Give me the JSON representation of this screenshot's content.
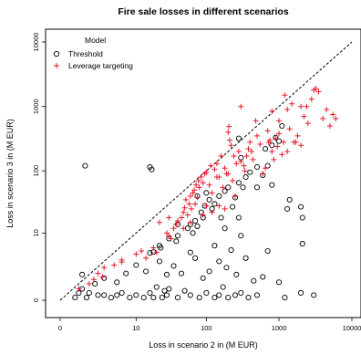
{
  "chart_data": {
    "type": "scatter",
    "title": "Fire sale losses in different scenarios",
    "xlabel": "Loss in scenario  2  in (M EUR)",
    "ylabel": "Loss in scenario  3  in (M EUR)",
    "x_scale": "log1p",
    "y_scale": "log1p",
    "xlim": [
      0,
      10000
    ],
    "ylim": [
      0,
      10000
    ],
    "x_ticks": [
      0,
      10,
      100,
      1000,
      10000
    ],
    "x_tick_labels": [
      "0",
      "10",
      "100",
      "1000",
      "10000"
    ],
    "y_ticks": [
      0,
      10,
      100,
      1000,
      10000
    ],
    "y_tick_labels": [
      "0",
      "10",
      "100",
      "1000",
      "10000"
    ],
    "reference_line": "identity (y = x), dashed",
    "legend": {
      "title": "Model",
      "position": "top-left",
      "entries": [
        "Threshold",
        "Leverage targeting"
      ]
    },
    "series": [
      {
        "name": "Threshold",
        "marker": "open-circle",
        "color": "#000000",
        "points": [
          [
            0.6,
            0.1
          ],
          [
            0.8,
            0.3
          ],
          [
            1,
            0.5
          ],
          [
            1.3,
            0.1
          ],
          [
            1.5,
            0.3
          ],
          [
            2,
            0.8
          ],
          [
            2.3,
            0.2
          ],
          [
            3,
            0.2
          ],
          [
            4,
            0.1
          ],
          [
            5,
            0.2
          ],
          [
            6,
            0.3
          ],
          [
            8,
            0.1
          ],
          [
            10,
            0.2
          ],
          [
            13,
            0.1
          ],
          [
            16,
            0.3
          ],
          [
            18,
            0.1
          ],
          [
            20,
            0.6
          ],
          [
            24,
            0.1
          ],
          [
            26,
            0.4
          ],
          [
            28,
            0.2
          ],
          [
            30,
            0.5
          ],
          [
            40,
            0.1
          ],
          [
            50,
            0.4
          ],
          [
            60,
            0.2
          ],
          [
            80,
            0.1
          ],
          [
            100,
            0.3
          ],
          [
            130,
            0.1
          ],
          [
            150,
            0.2
          ],
          [
            170,
            0.6
          ],
          [
            200,
            0.1
          ],
          [
            250,
            0.2
          ],
          [
            300,
            0.3
          ],
          [
            380,
            0.1
          ],
          [
            500,
            0.2
          ],
          [
            1200,
            0.1
          ],
          [
            2000,
            0.3
          ],
          [
            3000,
            0.2
          ],
          [
            1,
            1.5
          ],
          [
            3,
            1.2
          ],
          [
            5,
            0.9
          ],
          [
            7,
            1.6
          ],
          [
            10,
            2.5
          ],
          [
            14,
            1.8
          ],
          [
            16,
            4.4
          ],
          [
            22,
            3
          ],
          [
            28,
            1.5
          ],
          [
            35,
            2.4
          ],
          [
            45,
            1.6
          ],
          [
            60,
            4.5
          ],
          [
            70,
            3.5
          ],
          [
            90,
            1.2
          ],
          [
            110,
            1.8
          ],
          [
            130,
            6
          ],
          [
            150,
            3
          ],
          [
            190,
            2.2
          ],
          [
            220,
            5
          ],
          [
            260,
            1.5
          ],
          [
            300,
            9
          ],
          [
            350,
            3.5
          ],
          [
            450,
            1
          ],
          [
            600,
            1.3
          ],
          [
            700,
            4.8
          ],
          [
            1000,
            0.9
          ],
          [
            2100,
            6.5
          ],
          [
            18,
            4.6
          ],
          [
            22,
            6
          ],
          [
            30,
            8
          ],
          [
            40,
            9
          ],
          [
            55,
            12
          ],
          [
            70,
            16
          ],
          [
            85,
            22
          ],
          [
            95,
            28
          ],
          [
            110,
            35
          ],
          [
            130,
            30
          ],
          [
            150,
            40
          ],
          [
            180,
            48
          ],
          [
            200,
            55
          ],
          [
            230,
            27
          ],
          [
            280,
            65
          ],
          [
            320,
            55
          ],
          [
            350,
            80
          ],
          [
            400,
            95
          ],
          [
            500,
            115
          ],
          [
            600,
            85
          ],
          [
            800,
            250
          ],
          [
            900,
            330
          ],
          [
            1100,
            500
          ],
          [
            1400,
            35
          ],
          [
            2000,
            27
          ],
          [
            2100,
            18
          ],
          [
            700,
            120
          ],
          [
            280,
            18
          ],
          [
            180,
            12
          ],
          [
            23,
            5.5
          ],
          [
            38,
            7.2
          ],
          [
            65,
            10
          ],
          [
            90,
            18
          ],
          [
            120,
            25
          ],
          [
            75,
            40
          ],
          [
            100,
            45
          ],
          [
            160,
            18
          ],
          [
            250,
            38
          ],
          [
            300,
            160
          ],
          [
            500,
            55
          ],
          [
            650,
            220
          ],
          [
            280,
            320
          ],
          [
            1000,
            290
          ],
          [
            1300,
            25
          ],
          [
            800,
            60
          ],
          [
            1.2,
            120
          ],
          [
            16,
            115
          ],
          [
            17,
            105
          ],
          [
            60,
            14
          ],
          [
            75,
            13
          ],
          [
            40,
            14
          ]
        ]
      },
      {
        "name": "Leverage targeting",
        "marker": "plus",
        "color": "#e8192b",
        "points": [
          [
            0.8,
            0.5
          ],
          [
            1.5,
            0.8
          ],
          [
            2.8,
            1.3
          ],
          [
            3,
            2.2
          ],
          [
            4.5,
            2.5
          ],
          [
            6,
            3.2
          ],
          [
            6,
            2.9
          ],
          [
            10,
            4.2
          ],
          [
            12,
            4.8
          ],
          [
            14,
            3.5
          ],
          [
            18,
            5.5
          ],
          [
            20,
            4.5
          ],
          [
            22,
            15
          ],
          [
            28,
            10
          ],
          [
            30,
            9
          ],
          [
            30,
            18
          ],
          [
            32,
            8
          ],
          [
            35,
            12
          ],
          [
            38,
            14
          ],
          [
            40,
            16
          ],
          [
            45,
            18
          ],
          [
            48,
            22
          ],
          [
            48,
            12
          ],
          [
            50,
            26
          ],
          [
            52,
            35
          ],
          [
            55,
            20
          ],
          [
            58,
            30
          ],
          [
            60,
            40
          ],
          [
            62,
            25
          ],
          [
            65,
            45
          ],
          [
            68,
            50
          ],
          [
            70,
            30
          ],
          [
            72,
            60
          ],
          [
            75,
            38
          ],
          [
            78,
            70
          ],
          [
            80,
            55
          ],
          [
            85,
            80
          ],
          [
            90,
            65
          ],
          [
            95,
            90
          ],
          [
            100,
            95
          ],
          [
            110,
            60
          ],
          [
            115,
            120
          ],
          [
            120,
            45
          ],
          [
            130,
            105
          ],
          [
            140,
            130
          ],
          [
            150,
            80
          ],
          [
            160,
            170
          ],
          [
            180,
            110
          ],
          [
            190,
            90
          ],
          [
            200,
            400
          ],
          [
            205,
            490
          ],
          [
            210,
            300
          ],
          [
            220,
            250
          ],
          [
            240,
            170
          ],
          [
            260,
            130
          ],
          [
            280,
            200
          ],
          [
            300,
            140
          ],
          [
            330,
            120
          ],
          [
            340,
            100
          ],
          [
            360,
            170
          ],
          [
            380,
            220
          ],
          [
            400,
            280
          ],
          [
            420,
            200
          ],
          [
            440,
            150
          ],
          [
            480,
            600
          ],
          [
            500,
            350
          ],
          [
            550,
            260
          ],
          [
            600,
            90
          ],
          [
            650,
            110
          ],
          [
            700,
            420
          ],
          [
            720,
            280
          ],
          [
            750,
            300
          ],
          [
            800,
            200
          ],
          [
            850,
            150
          ],
          [
            900,
            320
          ],
          [
            950,
            240
          ],
          [
            1000,
            380
          ],
          [
            1100,
            180
          ],
          [
            1150,
            280
          ],
          [
            1200,
            1500
          ],
          [
            1300,
            900
          ],
          [
            1400,
            450
          ],
          [
            1500,
            1100
          ],
          [
            1700,
            280
          ],
          [
            1800,
            350
          ],
          [
            2000,
            250
          ],
          [
            2200,
            700
          ],
          [
            2400,
            1000
          ],
          [
            2500,
            550
          ],
          [
            2800,
            1300
          ],
          [
            3200,
            1900
          ],
          [
            3500,
            1700
          ],
          [
            4000,
            650
          ],
          [
            4500,
            900
          ],
          [
            5000,
            500
          ],
          [
            5500,
            750
          ],
          [
            6000,
            650
          ],
          [
            1000,
            600
          ],
          [
            800,
            850
          ],
          [
            2000,
            1000
          ],
          [
            3000,
            1800
          ],
          [
            250,
            40
          ],
          [
            180,
            25
          ],
          [
            150,
            28
          ],
          [
            120,
            22
          ],
          [
            100,
            28
          ],
          [
            90,
            20
          ],
          [
            200,
            90
          ],
          [
            230,
            70
          ],
          [
            170,
            55
          ],
          [
            60,
            15
          ],
          [
            140,
            80
          ],
          [
            2.3,
            1.6
          ],
          [
            1.9,
            1.1
          ],
          [
            300,
            1000
          ],
          [
            1600,
            280
          ],
          [
            1300,
            200
          ]
        ]
      }
    ]
  }
}
